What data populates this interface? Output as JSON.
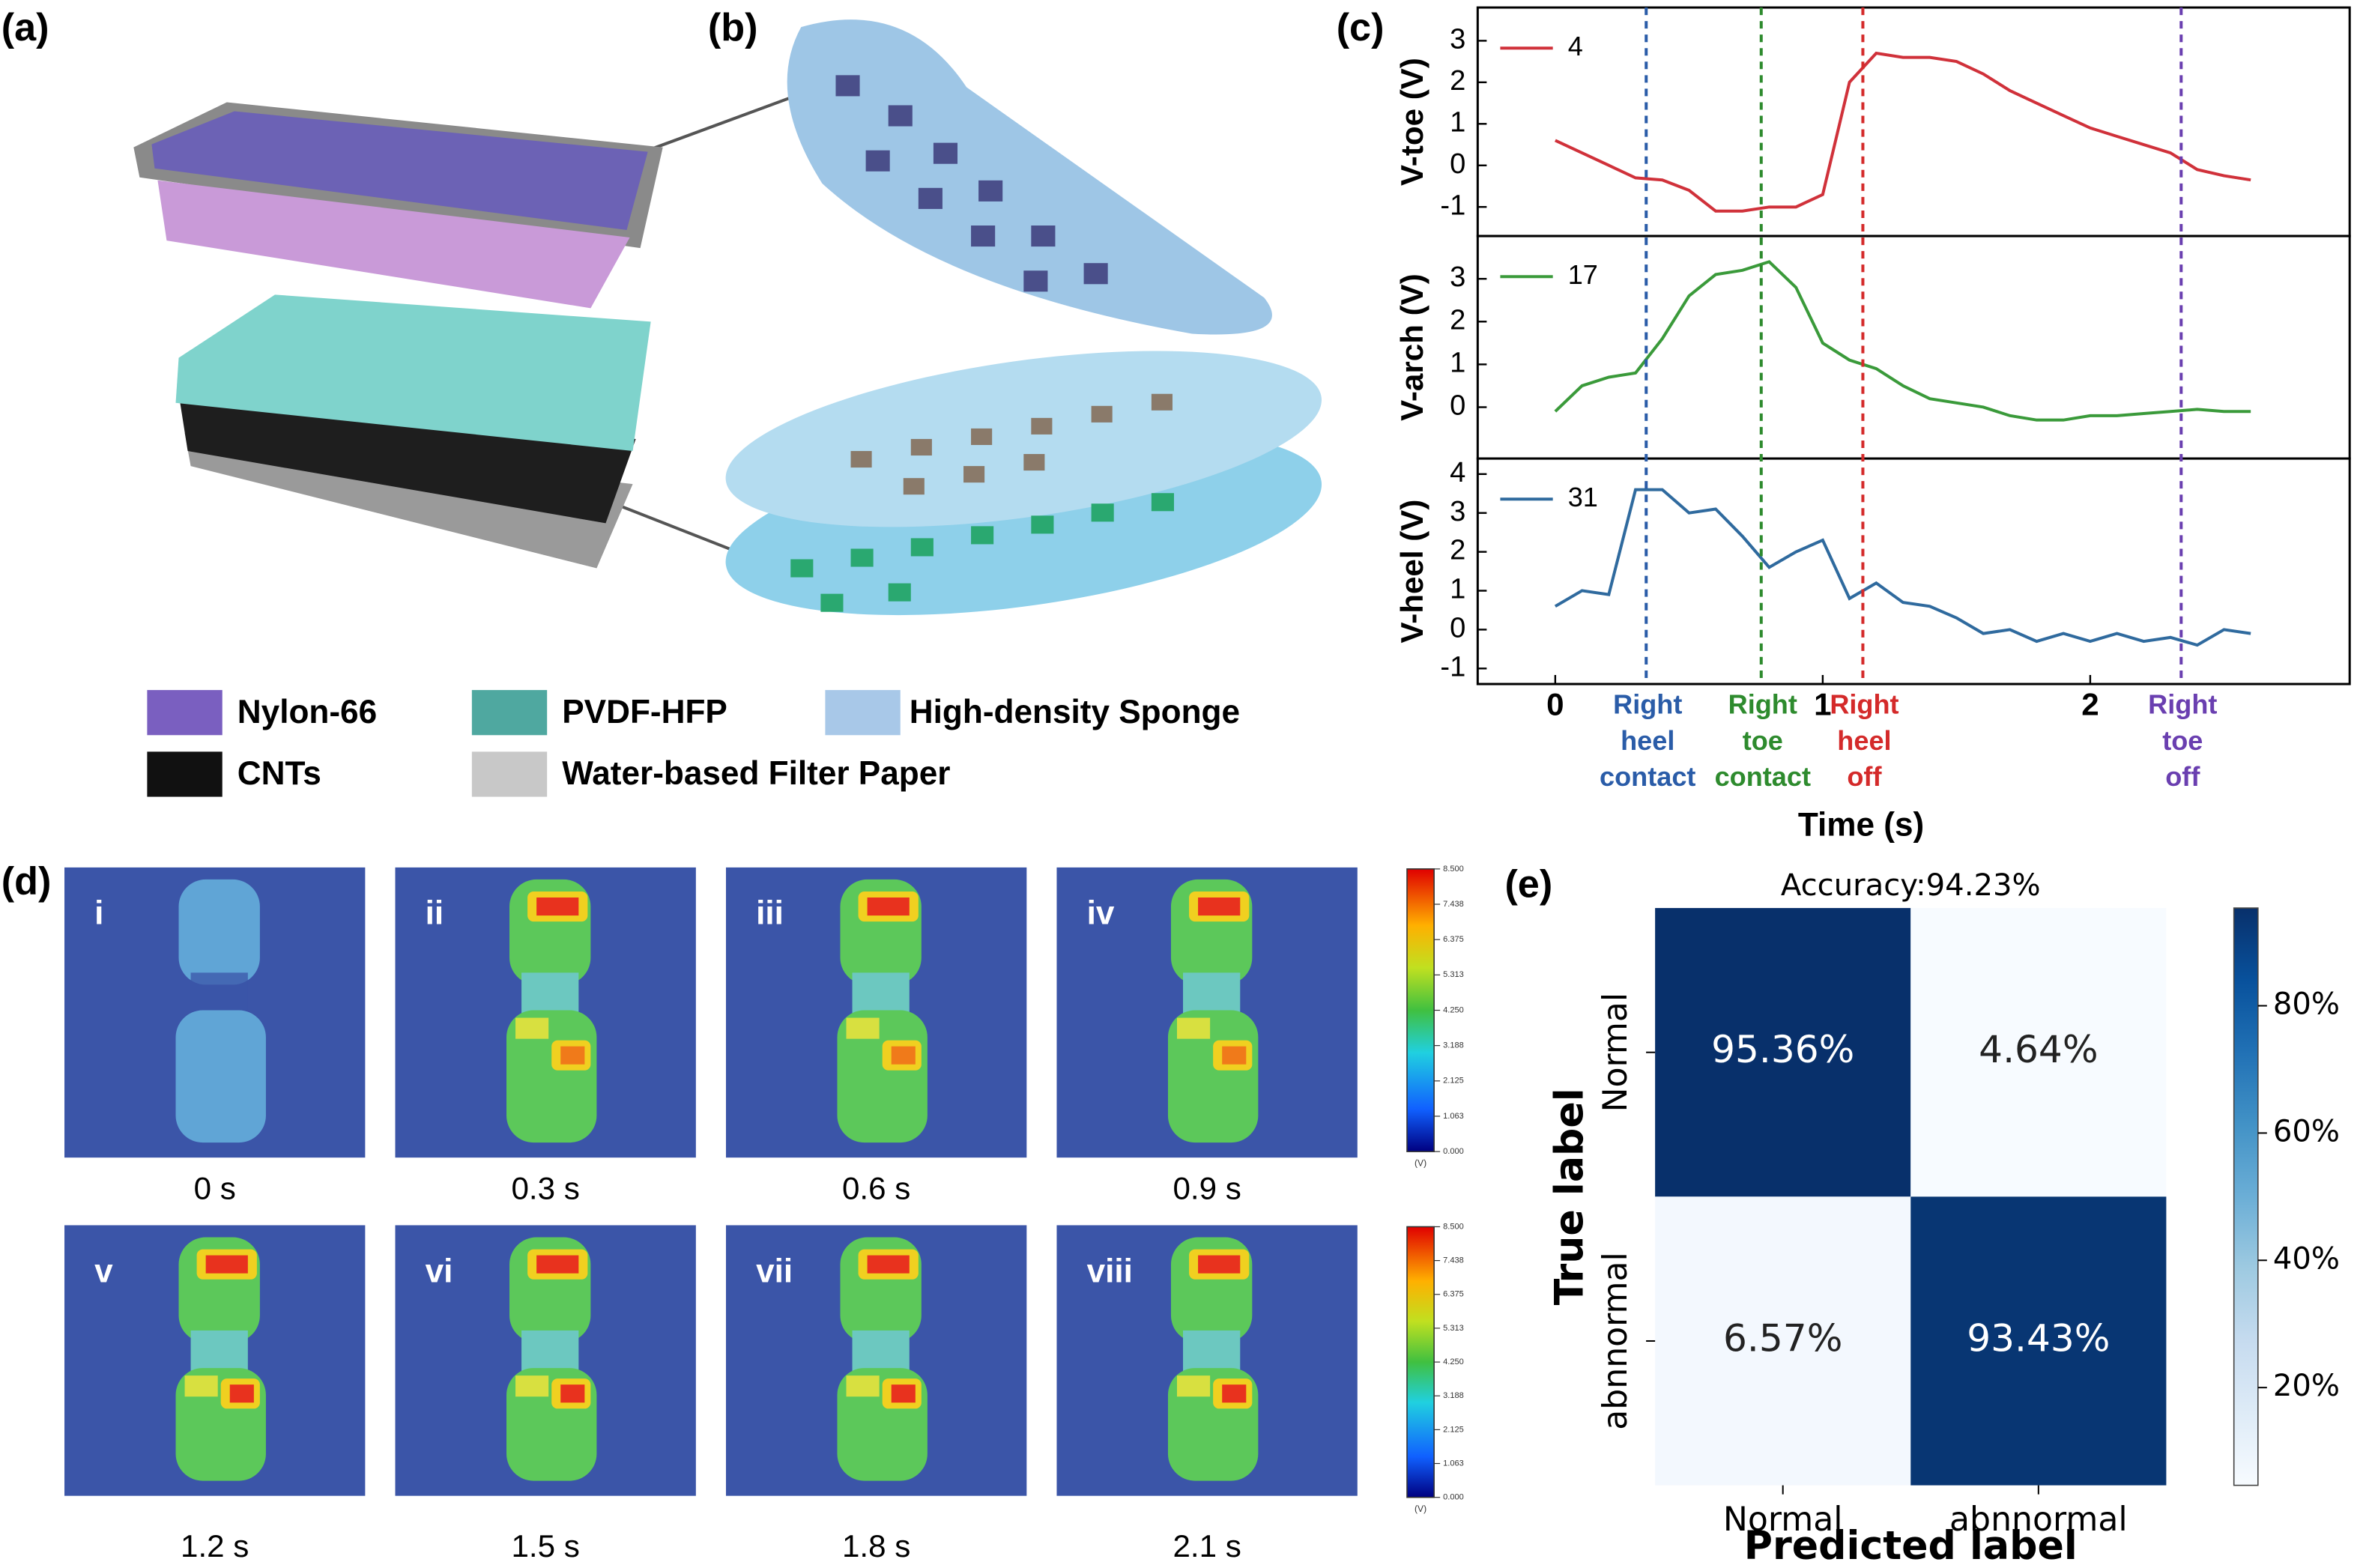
{
  "panel_labels": [
    "(a)",
    "(b)",
    "(c)",
    "(d)",
    "(e)"
  ],
  "materials": [
    "Nylon-66",
    "PVDF-HFP",
    "High-density Sponge",
    "CNTs",
    "Water-based Filter Paper"
  ],
  "pressure_maps": {
    "frames": [
      {
        "numeral": "i",
        "time": "0 s"
      },
      {
        "numeral": "ii",
        "time": "0.3 s"
      },
      {
        "numeral": "iii",
        "time": "0.6 s"
      },
      {
        "numeral": "iv",
        "time": "0.9 s"
      },
      {
        "numeral": "v",
        "time": "1.2 s"
      },
      {
        "numeral": "vi",
        "time": "1.5 s"
      },
      {
        "numeral": "vii",
        "time": "1.8 s"
      },
      {
        "numeral": "viii",
        "time": "2.1 s"
      }
    ],
    "colorbar_lim": [
      0,
      8.5
    ],
    "colorbar_ticks": [
      {
        "value": 8.5,
        "label": "8.500"
      },
      {
        "value": 7.438,
        "label": "7.438"
      },
      {
        "value": 6.375,
        "label": "6.375"
      },
      {
        "value": 5.313,
        "label": "5.313"
      },
      {
        "value": 4.25,
        "label": "4.250"
      },
      {
        "value": 3.188,
        "label": "3.188"
      },
      {
        "value": 2.125,
        "label": "2.125"
      },
      {
        "value": 1.063,
        "label": "1.063"
      },
      {
        "value": 0,
        "label": "0.000"
      }
    ],
    "colorbar_unit": "(V)"
  },
  "chart_data": [
    {
      "type": "line",
      "x_label": "Time (s)",
      "x": [
        0,
        0.1,
        0.2,
        0.3,
        0.4,
        0.5,
        0.6,
        0.7,
        0.8,
        0.9,
        1.0,
        1.1,
        1.2,
        1.3,
        1.4,
        1.5,
        1.6,
        1.7,
        1.8,
        1.9,
        2.0,
        2.1,
        2.2,
        2.3,
        2.4,
        2.5,
        2.6
      ],
      "xlim": [
        -0.29,
        2.97
      ],
      "xticks": [
        0,
        1,
        2
      ],
      "events": [
        {
          "x": 0.34,
          "lines": [
            "Right",
            "heel",
            "contact"
          ],
          "color": "#2a5ca8"
        },
        {
          "x": 0.77,
          "lines": [
            "Right",
            "toe",
            "contact"
          ],
          "color": "#2e8b2e"
        },
        {
          "x": 1.15,
          "lines": [
            "Right",
            "heel",
            "off"
          ],
          "color": "#d42a2a"
        },
        {
          "x": 2.34,
          "lines": [
            "Right",
            "toe",
            "off"
          ],
          "color": "#6a3fb0"
        }
      ],
      "panels": [
        {
          "y_label": "V-toe (V)",
          "ylim": [
            -1.7,
            3.8
          ],
          "yticks": [
            -1,
            0,
            1,
            2,
            3
          ],
          "series": [
            {
              "name": "4",
              "color": "#d0313a",
              "values": [
                0.6,
                0.3,
                0.0,
                -0.3,
                -0.35,
                -0.6,
                -1.1,
                -1.1,
                -1.0,
                -1.0,
                -0.7,
                2.0,
                2.7,
                2.6,
                2.6,
                2.5,
                2.2,
                1.8,
                1.5,
                1.2,
                0.9,
                0.7,
                0.5,
                0.3,
                -0.1,
                -0.25,
                -0.35
              ]
            }
          ]
        },
        {
          "y_label": "V-arch (V)",
          "ylim": [
            -1.2,
            4.0
          ],
          "yticks": [
            0,
            1,
            2,
            3
          ],
          "series": [
            {
              "name": "17",
              "color": "#3a9a3a",
              "values": [
                -0.1,
                0.5,
                0.7,
                0.8,
                1.6,
                2.6,
                3.1,
                3.2,
                3.4,
                2.8,
                1.5,
                1.1,
                0.9,
                0.5,
                0.2,
                0.1,
                0.0,
                -0.2,
                -0.3,
                -0.3,
                -0.2,
                -0.2,
                -0.15,
                -0.1,
                -0.05,
                -0.1,
                -0.1
              ]
            }
          ]
        },
        {
          "y_label": "V-heel (V)",
          "ylim": [
            -1.4,
            4.4
          ],
          "yticks": [
            -1,
            0,
            1,
            2,
            3,
            4
          ],
          "series": [
            {
              "name": "31",
              "color": "#2f6a9e",
              "values": [
                0.6,
                1.0,
                0.9,
                3.6,
                3.6,
                3.0,
                3.1,
                2.4,
                1.6,
                2.0,
                2.3,
                0.8,
                1.2,
                0.7,
                0.6,
                0.3,
                -0.1,
                0.0,
                -0.3,
                -0.1,
                -0.3,
                -0.1,
                -0.3,
                -0.2,
                -0.4,
                0.0,
                -0.1
              ]
            }
          ]
        }
      ]
    },
    {
      "type": "heatmap",
      "title": "Accuracy:94.23%",
      "x_label": "Predicted label",
      "y_label": "True label",
      "x_categories": [
        "Normal",
        "abnnormal"
      ],
      "y_categories": [
        "Normal",
        "abnnormal"
      ],
      "values": [
        [
          95.36,
          4.64
        ],
        [
          6.57,
          93.43
        ]
      ],
      "value_labels": [
        [
          "95.36%",
          "4.64%"
        ],
        [
          "6.57%",
          "93.43%"
        ]
      ],
      "clim": [
        4.64,
        95.36
      ],
      "cticks": [
        {
          "value": 20,
          "label": "20%"
        },
        {
          "value": 40,
          "label": "40%"
        },
        {
          "value": 60,
          "label": "60%"
        },
        {
          "value": 80,
          "label": "80%"
        }
      ]
    }
  ]
}
